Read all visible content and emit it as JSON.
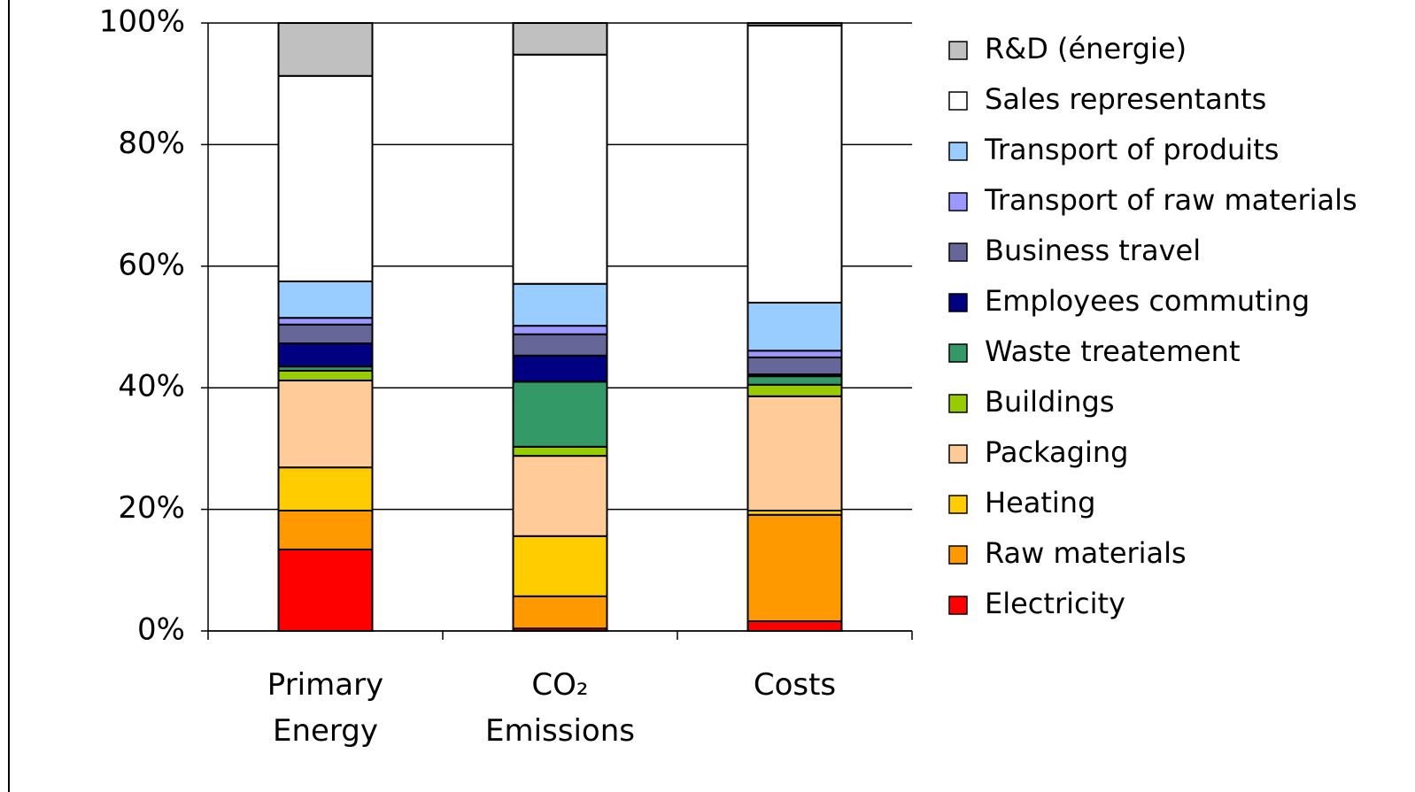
{
  "chart_data": {
    "type": "stacked_bar",
    "categories": [
      "Primary Energy",
      "CO₂ Emissions",
      "Costs"
    ],
    "series": [
      {
        "name": "Electricity",
        "color": "#ff0000",
        "values": [
          13.4,
          0.4,
          1.6
        ]
      },
      {
        "name": "Raw materials",
        "color": "#ff9900",
        "values": [
          6.4,
          5.3,
          17.5
        ]
      },
      {
        "name": "Heating",
        "color": "#ffcc00",
        "values": [
          7.1,
          9.9,
          0.7
        ]
      },
      {
        "name": "Packaging",
        "color": "#ffcc99",
        "values": [
          14.3,
          13.2,
          18.8
        ]
      },
      {
        "name": "Buildings",
        "color": "#99cc00",
        "values": [
          1.6,
          1.5,
          1.9
        ]
      },
      {
        "name": "Waste treatement",
        "color": "#339966",
        "values": [
          0.7,
          10.7,
          1.4
        ]
      },
      {
        "name": "Employees commuting",
        "color": "#000080",
        "values": [
          3.8,
          4.3,
          0.3
        ]
      },
      {
        "name": "Business travel",
        "color": "#666699",
        "values": [
          3.1,
          3.5,
          2.8
        ]
      },
      {
        "name": "Transport of raw materials",
        "color": "#9999ff",
        "values": [
          1.1,
          1.4,
          1.1
        ]
      },
      {
        "name": "Transport of produits",
        "color": "#99ccff",
        "values": [
          6.0,
          6.9,
          7.9
        ]
      },
      {
        "name": "Sales representants",
        "color": "#ffffff",
        "values": [
          33.8,
          37.7,
          45.6
        ]
      },
      {
        "name": "R&D (énergie)",
        "color": "#c0c0c0",
        "values": [
          8.7,
          5.2,
          0.4
        ]
      }
    ],
    "ylim": [
      0,
      100
    ],
    "yticks": [
      {
        "value": 0,
        "label": "0%"
      },
      {
        "value": 20,
        "label": "20%"
      },
      {
        "value": 40,
        "label": "40%"
      },
      {
        "value": 60,
        "label": "60%"
      },
      {
        "value": 80,
        "label": "80%"
      },
      {
        "value": 100,
        "label": "100%"
      }
    ],
    "grid": true,
    "legend": "right"
  }
}
